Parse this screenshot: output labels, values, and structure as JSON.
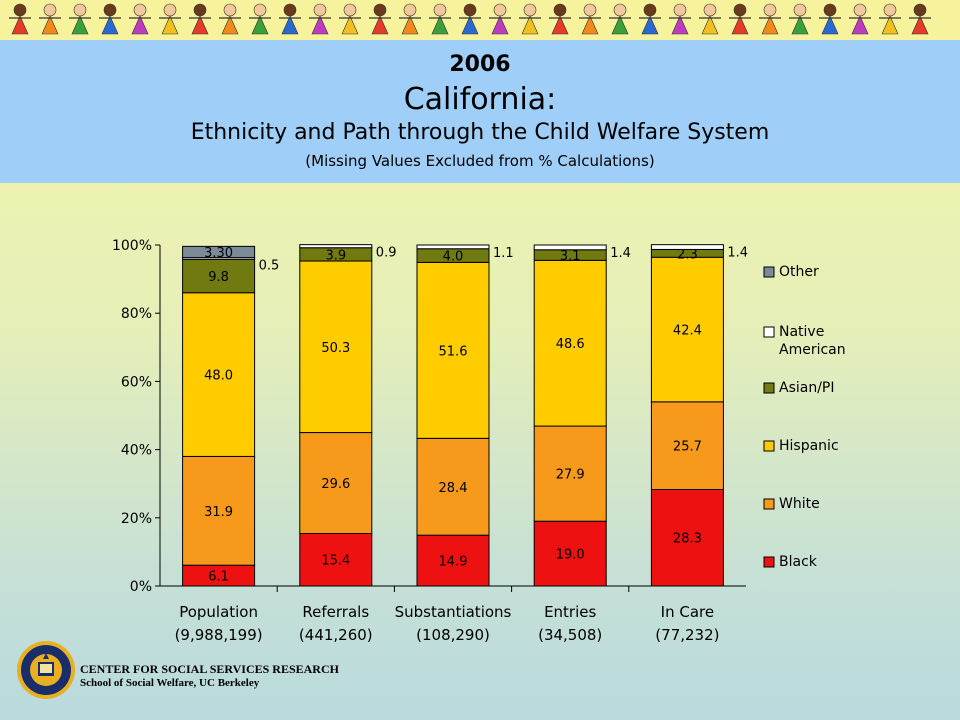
{
  "header": {
    "year": "2006",
    "state": "California:",
    "title": "Ethnicity and Path through the Child Welfare System",
    "subtitle": "(Missing Values Excluded from % Calculations)"
  },
  "footer": {
    "line1": "CENTER FOR SOCIAL SERVICES RESEARCH",
    "line2": "School of Social Welfare, UC Berkeley"
  },
  "colors": {
    "Black": "#ee1111",
    "White": "#f79a1c",
    "Hispanic": "#ffcc00",
    "Asian/PI": "#707a10",
    "Native American": "#ffffff",
    "Other": "#7a8a96"
  },
  "chart_data": {
    "type": "bar",
    "stacked": true,
    "ylim": [
      0,
      100
    ],
    "yticks": [
      "0%",
      "20%",
      "40%",
      "60%",
      "80%",
      "100%"
    ],
    "categories": [
      "Population",
      "Referrals",
      "Substantiations",
      "Entries",
      "In Care"
    ],
    "category_counts": [
      "(9,988,199)",
      "(441,260)",
      "(108,290)",
      "(34,508)",
      "(77,232)"
    ],
    "series": [
      {
        "name": "Black",
        "values": [
          6.1,
          15.4,
          14.9,
          19.0,
          28.3
        ],
        "labels": [
          "6.1",
          "15.4",
          "14.9",
          "19.0",
          "28.3"
        ]
      },
      {
        "name": "White",
        "values": [
          31.9,
          29.6,
          28.4,
          27.9,
          25.7
        ],
        "labels": [
          "31.9",
          "29.6",
          "28.4",
          "27.9",
          "25.7"
        ]
      },
      {
        "name": "Hispanic",
        "values": [
          48.0,
          50.3,
          51.6,
          48.6,
          42.4
        ],
        "labels": [
          "48.0",
          "50.3",
          "51.6",
          "48.6",
          "42.4"
        ]
      },
      {
        "name": "Asian/PI",
        "values": [
          9.8,
          3.9,
          4.0,
          3.1,
          2.3
        ],
        "labels": [
          "9.8",
          "3.9",
          "4.0",
          "3.1",
          "2.3"
        ]
      },
      {
        "name": "Native American",
        "values": [
          0.5,
          0.9,
          1.1,
          1.4,
          1.4
        ],
        "labels": [
          "0.5",
          "0.9",
          "1.1",
          "1.4",
          "1.4"
        ]
      },
      {
        "name": "Other",
        "values": [
          3.3,
          0,
          0,
          0,
          0
        ],
        "labels": [
          "3.30",
          "",
          "",
          "",
          ""
        ]
      }
    ],
    "legend": {
      "position": "right",
      "items": [
        "Other",
        "Native American",
        "Asian/PI",
        "Hispanic",
        "White",
        "Black"
      ]
    }
  }
}
